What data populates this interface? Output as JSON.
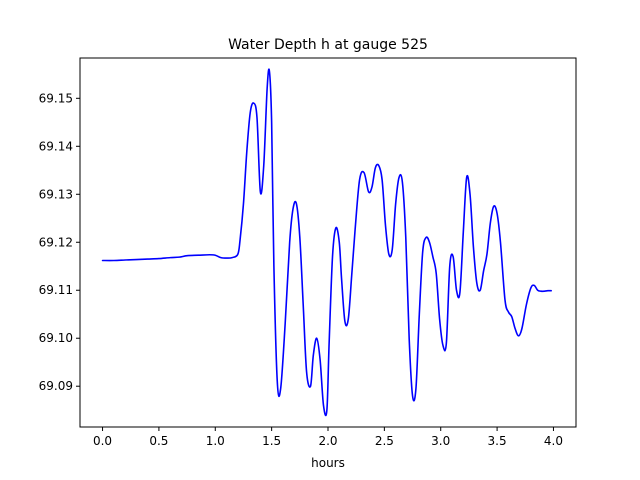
{
  "chart_data": {
    "type": "line",
    "title": "Water Depth h at gauge 525",
    "xlabel": "hours",
    "ylabel": "",
    "xlim": [
      -0.2,
      4.2
    ],
    "ylim": [
      69.0815,
      69.1584
    ],
    "xticks": [
      0.0,
      0.5,
      1.0,
      1.5,
      2.0,
      2.5,
      3.0,
      3.5,
      4.0
    ],
    "xtick_labels": [
      "0.0",
      "0.5",
      "1.0",
      "1.5",
      "2.0",
      "2.5",
      "3.0",
      "3.5",
      "4.0"
    ],
    "yticks": [
      69.09,
      69.1,
      69.11,
      69.12,
      69.13,
      69.14,
      69.15
    ],
    "ytick_labels": [
      "69.09",
      "69.10",
      "69.11",
      "69.12",
      "69.13",
      "69.14",
      "69.15"
    ],
    "grid": false,
    "series": [
      {
        "color": "#0000ff",
        "x": [
          0.0,
          0.1,
          0.2,
          0.3,
          0.4,
          0.5,
          0.6,
          0.68,
          0.75,
          0.85,
          0.95,
          1.0,
          1.05,
          1.1,
          1.15,
          1.2,
          1.22,
          1.25,
          1.28,
          1.31,
          1.34,
          1.37,
          1.4,
          1.43,
          1.46,
          1.48,
          1.5,
          1.52,
          1.55,
          1.58,
          1.62,
          1.66,
          1.69,
          1.72,
          1.75,
          1.78,
          1.81,
          1.845,
          1.87,
          1.9,
          1.93,
          1.96,
          1.99,
          2.01,
          2.04,
          2.07,
          2.1,
          2.12,
          2.15,
          2.18,
          2.21,
          2.24,
          2.28,
          2.32,
          2.36,
          2.39,
          2.42,
          2.45,
          2.48,
          2.51,
          2.54,
          2.57,
          2.6,
          2.63,
          2.66,
          2.69,
          2.72,
          2.75,
          2.78,
          2.81,
          2.84,
          2.87,
          2.9,
          2.93,
          2.96,
          2.99,
          3.02,
          3.05,
          3.08,
          3.11,
          3.14,
          3.17,
          3.2,
          3.23,
          3.26,
          3.29,
          3.32,
          3.35,
          3.38,
          3.41,
          3.44,
          3.47,
          3.5,
          3.53,
          3.57,
          3.6,
          3.63,
          3.66,
          3.69,
          3.72,
          3.76,
          3.8,
          3.83,
          3.86,
          3.89,
          3.92,
          3.95,
          3.98
        ],
        "y": [
          69.1162,
          69.1162,
          69.1163,
          69.1164,
          69.1165,
          69.1166,
          69.1168,
          69.1169,
          69.1172,
          69.1173,
          69.1174,
          69.1173,
          69.1168,
          69.1167,
          69.1168,
          69.1175,
          69.1205,
          69.128,
          69.139,
          69.147,
          69.149,
          69.146,
          69.1305,
          69.136,
          69.152,
          69.1557,
          69.145,
          69.115,
          69.091,
          69.0895,
          69.103,
          69.12,
          69.127,
          69.128,
          69.121,
          69.107,
          69.093,
          69.09,
          69.0965,
          69.1,
          69.0955,
          69.086,
          69.085,
          69.099,
          69.117,
          69.123,
          69.12,
          69.1125,
          69.1035,
          69.104,
          69.113,
          69.1225,
          69.133,
          69.1345,
          69.1305,
          69.1315,
          69.1355,
          69.136,
          69.133,
          69.1235,
          69.1175,
          69.1185,
          69.128,
          69.1335,
          69.1325,
          69.121,
          69.1,
          69.088,
          69.0895,
          69.105,
          69.118,
          69.121,
          69.12,
          69.117,
          69.1135,
          69.104,
          69.0985,
          69.099,
          69.115,
          69.117,
          69.11,
          69.1095,
          69.122,
          69.1335,
          69.13,
          69.119,
          69.1115,
          69.11,
          69.114,
          69.1175,
          69.124,
          69.1275,
          69.126,
          69.12,
          69.108,
          69.1055,
          69.1045,
          69.102,
          69.1005,
          69.102,
          69.107,
          69.1105,
          69.111,
          69.11,
          69.1098,
          69.1098,
          69.1099,
          69.1099
        ]
      }
    ]
  }
}
